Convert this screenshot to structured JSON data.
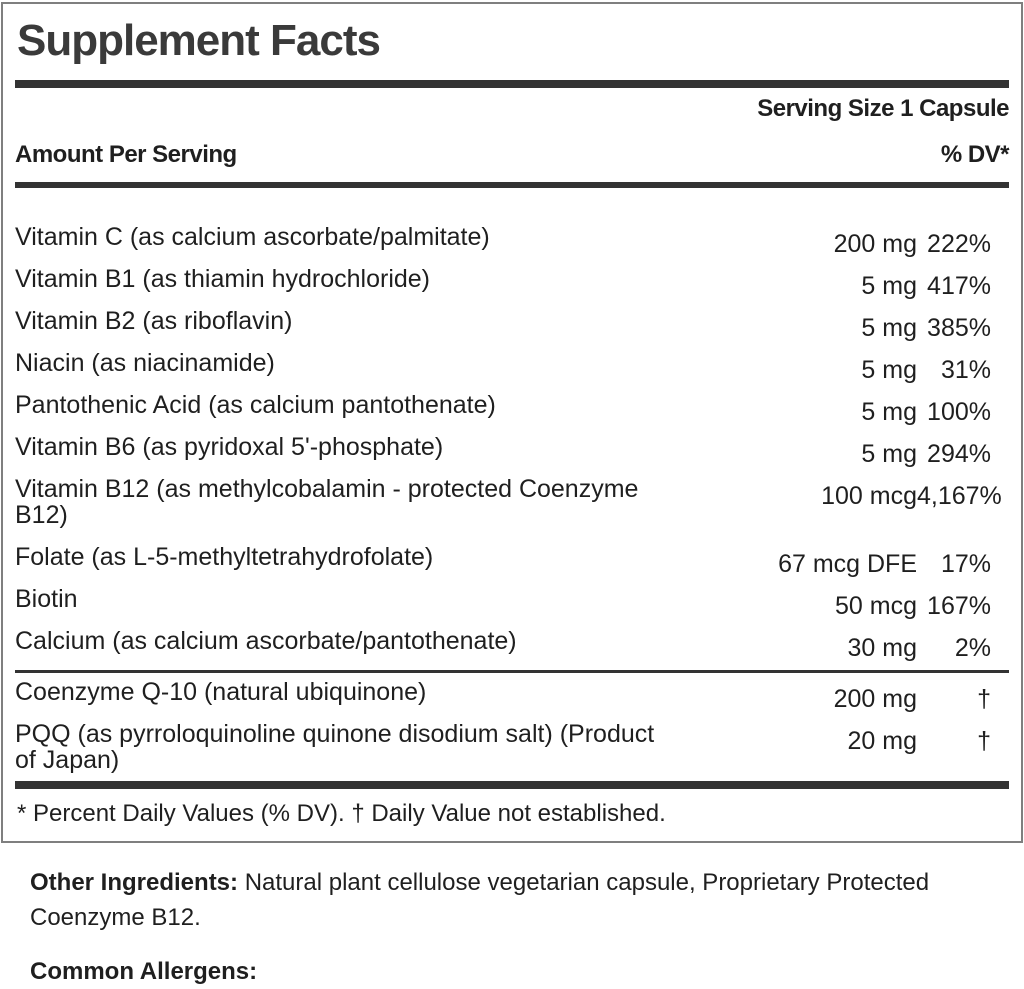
{
  "label": {
    "title": "Supplement Facts",
    "serving_size": "Serving Size 1 Capsule",
    "header": {
      "amount_col": "Amount Per Serving",
      "dv_col": "% DV*"
    },
    "rows": [
      {
        "name": "Vitamin C (as calcium ascorbate/palmitate)",
        "amount": "200 mg",
        "dv": "222%"
      },
      {
        "name": "Vitamin B1 (as thiamin hydrochloride)",
        "amount": "5 mg",
        "dv": "417%"
      },
      {
        "name": "Vitamin B2 (as riboflavin)",
        "amount": "5 mg",
        "dv": "385%"
      },
      {
        "name": "Niacin (as niacinamide)",
        "amount": "5 mg",
        "dv": "31%"
      },
      {
        "name": "Pantothenic Acid (as calcium pantothenate)",
        "amount": "5 mg",
        "dv": "100%"
      },
      {
        "name": "Vitamin B6 (as pyridoxal 5'-phosphate)",
        "amount": "5 mg",
        "dv": "294%"
      },
      {
        "name": "Vitamin B12 (as methylcobalamin - protected Coenzyme B12)",
        "amount": "100 mcg",
        "dv": "4,167%"
      },
      {
        "name": "Folate (as L-5-methyltetrahydrofolate)",
        "amount": "67 mcg DFE",
        "dv": "17%"
      },
      {
        "name": "Biotin",
        "amount": "50 mcg",
        "dv": "167%"
      },
      {
        "name": "Calcium (as calcium ascorbate/pantothenate)",
        "amount": "30 mg",
        "dv": "2%"
      }
    ],
    "secondary_rows": [
      {
        "name": "Coenzyme Q-10 (natural ubiquinone)",
        "amount": "200 mg",
        "dv": "†"
      },
      {
        "name": "PQQ (as pyrroloquinoline quinone disodium salt) (Product of Japan)",
        "amount": "20 mg",
        "dv": "†"
      }
    ],
    "footnote": "* Percent Daily Values (% DV). † Daily Value not established."
  },
  "below": {
    "other_ingredients_label": "Other Ingredients:",
    "other_ingredients_text": " Natural plant cellulose vegetarian capsule, Proprietary Protected Coenzyme B12.",
    "allergens_label": "Common Allergens:"
  },
  "colors": {
    "text": "#1f1f1f",
    "title": "#3a3a3a",
    "bars": "#333333",
    "box_border": "#7f7f7f",
    "background": "#ffffff"
  }
}
